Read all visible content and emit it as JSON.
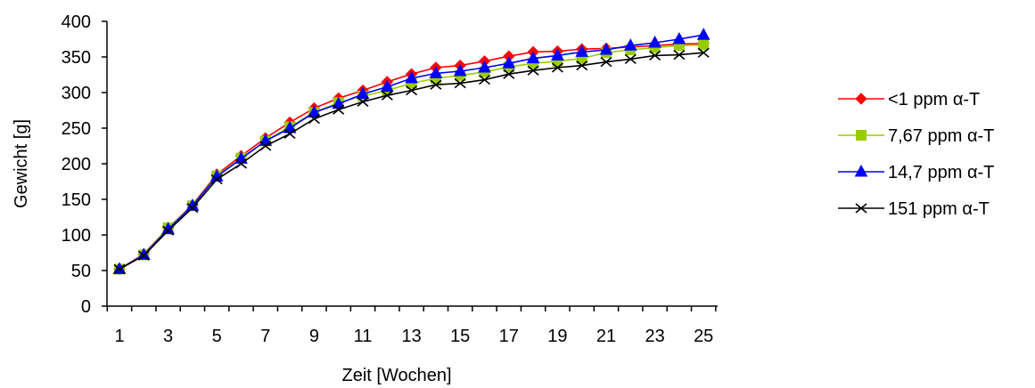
{
  "chart_data": {
    "type": "line",
    "title": "",
    "xlabel": "Zeit [Wochen]",
    "ylabel": "Gewicht [g]",
    "x": [
      1,
      2,
      3,
      4,
      5,
      6,
      7,
      8,
      9,
      10,
      11,
      12,
      13,
      14,
      15,
      16,
      17,
      18,
      19,
      20,
      21,
      22,
      23,
      24,
      25
    ],
    "x_ticks": [
      1,
      3,
      5,
      7,
      9,
      11,
      13,
      15,
      17,
      19,
      21,
      23,
      25
    ],
    "x_tick_labels": [
      "1",
      "3",
      "5",
      "7",
      "9",
      "11",
      "13",
      "15",
      "17",
      "19",
      "21",
      "23",
      "25"
    ],
    "ylim": [
      0,
      400
    ],
    "y_ticks": [
      0,
      50,
      100,
      150,
      200,
      250,
      300,
      350,
      400
    ],
    "y_tick_labels": [
      "0",
      "50",
      "100",
      "150",
      "200",
      "250",
      "300",
      "350",
      "400"
    ],
    "grid": false,
    "legend_position": "right",
    "series": [
      {
        "name": "<1 ppm α-T",
        "color": "#ff0000",
        "marker": "diamond",
        "values": [
          52,
          73,
          110,
          142,
          185,
          211,
          236,
          258,
          278,
          292,
          303,
          315,
          326,
          335,
          338,
          344,
          351,
          357,
          358,
          361,
          362,
          364,
          366,
          368,
          369
        ]
      },
      {
        "name": "7,67 ppm α-T",
        "color": "#99cc00",
        "marker": "square",
        "values": [
          52,
          72,
          110,
          141,
          183,
          208,
          232,
          252,
          272,
          286,
          295,
          303,
          313,
          320,
          324,
          329,
          336,
          341,
          344,
          348,
          356,
          360,
          363,
          366,
          367
        ]
      },
      {
        "name": "14,7 ppm α-T",
        "color": "#0000ff",
        "marker": "triangle",
        "values": [
          52,
          72,
          108,
          141,
          182,
          207,
          232,
          250,
          272,
          284,
          298,
          308,
          320,
          327,
          330,
          335,
          341,
          348,
          352,
          357,
          360,
          366,
          370,
          375,
          381
        ]
      },
      {
        "name": "151 ppm α-T",
        "color": "#000000",
        "marker": "x",
        "values": [
          52,
          71,
          106,
          138,
          178,
          200,
          225,
          242,
          263,
          276,
          287,
          296,
          303,
          311,
          313,
          318,
          326,
          331,
          335,
          338,
          343,
          347,
          352,
          353,
          356
        ]
      }
    ]
  }
}
